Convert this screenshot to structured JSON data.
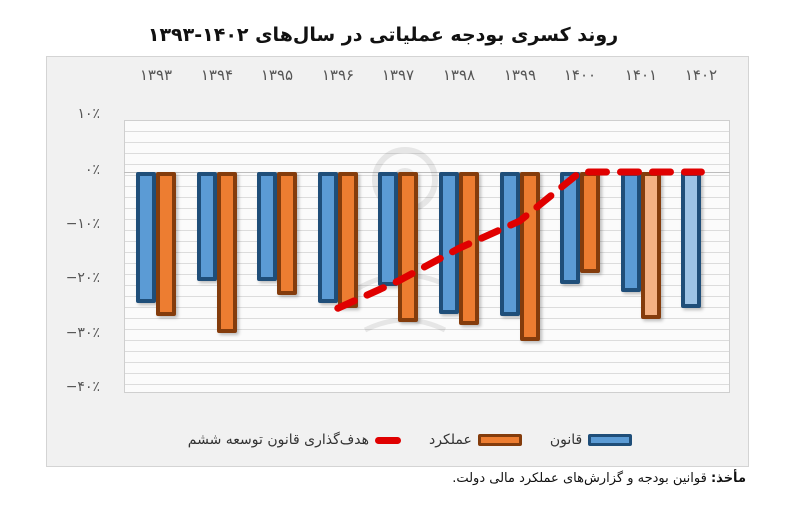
{
  "title": "روند کسری بودجه عملیاتی در سال‌های ۱۴۰۲-۱۳۹۳",
  "source": {
    "label": "مأخذ:",
    "text": "قوانین بودجه و گزارش‌های عملکرد مالی دولت."
  },
  "y_ticks": [
    "۱۰٪",
    "۰٪",
    "−۱۰٪",
    "−۲۰٪",
    "−۳۰٪",
    "−۴۰٪"
  ],
  "x_ticks": [
    "۱۳۹۳",
    "۱۳۹۴",
    "۱۳۹۵",
    "۱۳۹۶",
    "۱۳۹۷",
    "۱۳۹۸",
    "۱۳۹۹",
    "۱۴۰۰",
    "۱۴۰۱",
    "۱۴۰۲"
  ],
  "legend": {
    "law": "قانون",
    "performance": "عملکرد",
    "target": "هدف‌گذاری قانون توسعه ششم"
  },
  "colors": {
    "law": "#5b9bd5",
    "law_border": "#1f4e79",
    "performance": "#ed7d31",
    "performance_border": "#843c0c",
    "target": "#e00000"
  },
  "chart_data": {
    "type": "bar",
    "title": "روند کسری بودجه عملیاتی در سال‌های ۱۴۰۲-۱۳۹۳",
    "categories": [
      "1393",
      "1394",
      "1395",
      "1396",
      "1397",
      "1398",
      "1399",
      "1400",
      "1401",
      "1402"
    ],
    "series": [
      {
        "name": "قانون",
        "type": "bar",
        "values": [
          -24,
          -20,
          -20,
          -24,
          -21,
          -26,
          -26.5,
          -20.5,
          -22,
          -25
        ]
      },
      {
        "name": "عملکرد",
        "type": "bar",
        "values": [
          -26.5,
          -29.5,
          -22.5,
          -25,
          -27.5,
          -28,
          -31,
          -18.5,
          -27,
          null
        ]
      },
      {
        "name": "هدف‌گذاری قانون توسعه ششم",
        "type": "line",
        "style": "dashed",
        "values": [
          null,
          null,
          null,
          -25,
          -20,
          -14,
          -9,
          0,
          0,
          0
        ]
      }
    ],
    "xlabel": "",
    "ylabel": "",
    "ylim": [
      -40,
      10
    ],
    "y_ticks": [
      10,
      0,
      -10,
      -20,
      -30,
      -40
    ],
    "y_format": "percent",
    "x_axis_position": "top",
    "grid": true,
    "legend_position": "bottom",
    "notes": "1401 performance and 1402 law bars shown in lighter shades (estimates)"
  }
}
